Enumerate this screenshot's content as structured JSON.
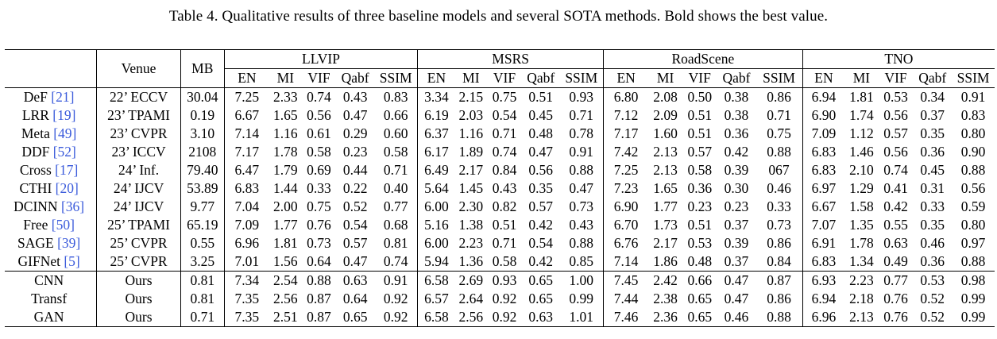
{
  "caption": "Table 4. Qualitative results of three baseline models and several SOTA methods. Bold shows the best value.",
  "header": {
    "venue": "Venue",
    "mb": "MB",
    "datasets": [
      "LLVIP",
      "MSRS",
      "RoadScene",
      "TNO"
    ],
    "metrics": [
      "EN",
      "MI",
      "VIF",
      "Qabf",
      "SSIM"
    ]
  },
  "sota_rows": [
    {
      "method": "DeF",
      "ref": "[21]",
      "venue": "22’ ECCV",
      "mb": "30.04",
      "values": [
        "7.25",
        "2.33",
        "0.74",
        "0.43",
        "0.83",
        "3.34",
        "2.15",
        "0.75",
        "0.51",
        "0.93",
        "6.80",
        "2.08",
        "0.50",
        "0.38",
        "0.86",
        "6.94",
        "1.81",
        "0.53",
        "0.34",
        "0.91"
      ],
      "bold": []
    },
    {
      "method": "LRR",
      "ref": "[19]",
      "venue": "23’ TPAMI",
      "mb": "0.19",
      "values": [
        "6.67",
        "1.65",
        "0.56",
        "0.47",
        "0.66",
        "6.19",
        "2.03",
        "0.54",
        "0.45",
        "0.71",
        "7.12",
        "2.09",
        "0.51",
        "0.38",
        "0.71",
        "6.90",
        "1.74",
        "0.56",
        "0.37",
        "0.83"
      ],
      "bold": []
    },
    {
      "method": "Meta",
      "ref": "[49]",
      "venue": "23’ CVPR",
      "mb": "3.10",
      "values": [
        "7.14",
        "1.16",
        "0.61",
        "0.29",
        "0.60",
        "6.37",
        "1.16",
        "0.71",
        "0.48",
        "0.78",
        "7.17",
        "1.60",
        "0.51",
        "0.36",
        "0.75",
        "7.09",
        "1.12",
        "0.57",
        "0.35",
        "0.80"
      ],
      "bold": [
        15
      ]
    },
    {
      "method": "DDF",
      "ref": "[52]",
      "venue": "23’ ICCV",
      "mb": "2108",
      "values": [
        "7.17",
        "1.78",
        "0.58",
        "0.23",
        "0.58",
        "6.17",
        "1.89",
        "0.74",
        "0.47",
        "0.91",
        "7.42",
        "2.13",
        "0.57",
        "0.42",
        "0.88",
        "6.83",
        "1.46",
        "0.56",
        "0.36",
        "0.90"
      ],
      "bold": [
        14
      ]
    },
    {
      "method": "Cross",
      "ref": "[17]",
      "venue": "24’ Inf.",
      "mb": "79.40",
      "values": [
        "6.47",
        "1.79",
        "0.69",
        "0.44",
        "0.71",
        "6.49",
        "2.17",
        "0.84",
        "0.56",
        "0.88",
        "7.25",
        "2.13",
        "0.58",
        "0.39",
        "067",
        "6.83",
        "2.10",
        "0.74",
        "0.45",
        "0.88"
      ],
      "bold": []
    },
    {
      "method": "CTHI",
      "ref": "[20]",
      "venue": "24’ IJCV",
      "mb": "53.89",
      "values": [
        "6.83",
        "1.44",
        "0.33",
        "0.22",
        "0.40",
        "5.64",
        "1.45",
        "0.43",
        "0.35",
        "0.47",
        "7.23",
        "1.65",
        "0.36",
        "0.30",
        "0.46",
        "6.97",
        "1.29",
        "0.41",
        "0.31",
        "0.56"
      ],
      "bold": []
    },
    {
      "method": "DCINN",
      "ref": "[36]",
      "venue": "24’ IJCV",
      "mb": "9.77",
      "values": [
        "7.04",
        "2.00",
        "0.75",
        "0.52",
        "0.77",
        "6.00",
        "2.30",
        "0.82",
        "0.57",
        "0.73",
        "6.90",
        "1.77",
        "0.23",
        "0.23",
        "0.33",
        "6.67",
        "1.58",
        "0.42",
        "0.33",
        "0.59"
      ],
      "bold": []
    },
    {
      "method": "Free",
      "ref": "[50]",
      "venue": "25’ TPAMI",
      "mb": "65.19",
      "values": [
        "7.09",
        "1.77",
        "0.76",
        "0.54",
        "0.68",
        "5.16",
        "1.38",
        "0.51",
        "0.42",
        "0.43",
        "6.70",
        "1.73",
        "0.51",
        "0.37",
        "0.73",
        "7.07",
        "1.35",
        "0.55",
        "0.35",
        "0.80"
      ],
      "bold": []
    },
    {
      "method": "SAGE",
      "ref": "[39]",
      "venue": "25’ CVPR",
      "mb": "0.55",
      "values": [
        "6.96",
        "1.81",
        "0.73",
        "0.57",
        "0.81",
        "6.00",
        "2.23",
        "0.71",
        "0.54",
        "0.88",
        "6.76",
        "2.17",
        "0.53",
        "0.39",
        "0.86",
        "6.91",
        "1.78",
        "0.63",
        "0.46",
        "0.97"
      ],
      "bold": []
    },
    {
      "method": "GIFNet",
      "ref": "[5]",
      "venue": "25’ CVPR",
      "mb": "3.25",
      "values": [
        "7.01",
        "1.56",
        "0.64",
        "0.47",
        "0.74",
        "5.94",
        "1.36",
        "0.58",
        "0.42",
        "0.85",
        "7.14",
        "1.86",
        "0.48",
        "0.37",
        "0.84",
        "6.83",
        "1.34",
        "0.49",
        "0.36",
        "0.88"
      ],
      "bold": []
    }
  ],
  "ours_rows": [
    {
      "method": "CNN",
      "venue": "Ours",
      "mb": "0.81",
      "values": [
        "7.34",
        "2.54",
        "0.88",
        "0.63",
        "0.91",
        "6.58",
        "2.69",
        "0.93",
        "0.65",
        "1.00",
        "7.45",
        "2.42",
        "0.66",
        "0.47",
        "0.87",
        "6.93",
        "2.23",
        "0.77",
        "0.53",
        "0.98"
      ],
      "bold": [
        0,
        1,
        2,
        3,
        4,
        5,
        6,
        7,
        8,
        9,
        10,
        11,
        12,
        13,
        16,
        17,
        18,
        19
      ]
    },
    {
      "method": "Transf",
      "venue": "Ours",
      "mb": "0.81",
      "values": [
        "7.35",
        "2.56",
        "0.87",
        "0.64",
        "0.92",
        "6.57",
        "2.64",
        "0.92",
        "0.65",
        "0.99",
        "7.44",
        "2.38",
        "0.65",
        "0.47",
        "0.86",
        "6.94",
        "2.18",
        "0.76",
        "0.52",
        "0.99"
      ],
      "bold": [
        0,
        1,
        2,
        3,
        4,
        5,
        6,
        7,
        8,
        9,
        10,
        11,
        12,
        13,
        16,
        17,
        18,
        19
      ]
    },
    {
      "method": "GAN",
      "venue": "Ours",
      "mb": "0.71",
      "values": [
        "7.35",
        "2.51",
        "0.87",
        "0.65",
        "0.92",
        "6.58",
        "2.56",
        "0.92",
        "0.63",
        "1.01",
        "7.46",
        "2.36",
        "0.65",
        "0.46",
        "0.88",
        "6.96",
        "2.13",
        "0.76",
        "0.52",
        "0.99"
      ],
      "bold": [
        0,
        1,
        2,
        3,
        4,
        5,
        6,
        7,
        8,
        9,
        10,
        11,
        12,
        13,
        14,
        16,
        17,
        18,
        19
      ]
    }
  ]
}
